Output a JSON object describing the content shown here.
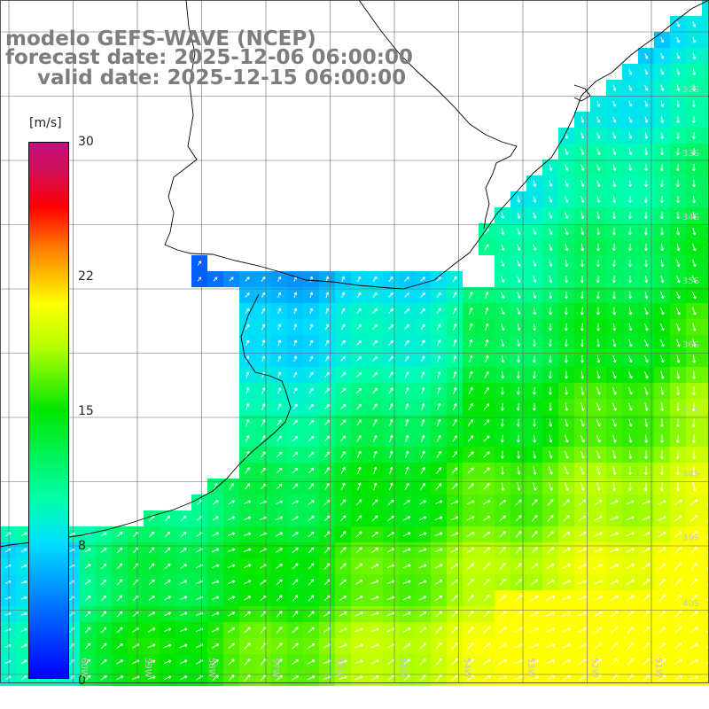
{
  "title": {
    "line1": "modelo GEFS-WAVE (NCEP)",
    "line2": "forecast date: 2025-12-06 06:00:00",
    "line3": "valid date: 2025-12-15 06:00:00"
  },
  "colorbar": {
    "unit": "[m/s]",
    "ticks": [
      "30",
      "22",
      "15",
      "8",
      "0"
    ],
    "range": [
      0,
      30
    ]
  },
  "grid": {
    "lat_labels": [
      "32S",
      "33S",
      "34S",
      "35S",
      "36S",
      "37S",
      "38S",
      "39S",
      "40S"
    ],
    "lon_labels": [
      "60W",
      "59W",
      "58W",
      "57W",
      "56W",
      "55W",
      "54W",
      "53W",
      "52W",
      "51W"
    ]
  },
  "map": {
    "variable": "wind speed and direction",
    "colors": {
      "land": "#ffffff",
      "coast": "#000000",
      "grid": "#666666"
    }
  }
}
